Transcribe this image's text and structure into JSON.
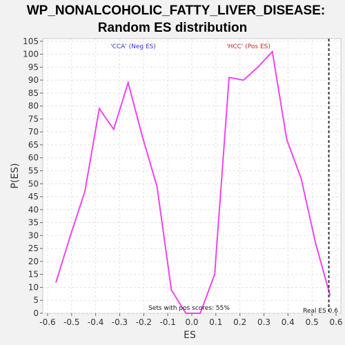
{
  "chart_data": {
    "type": "line",
    "title_line1": "WP_NONALCOHOLIC_FATTY_LIVER_DISEASE:",
    "title_line2": "Random ES distribution",
    "xlabel": "ES",
    "ylabel": "P(ES)",
    "xlim": [
      -0.62,
      0.62
    ],
    "ylim": [
      0,
      106
    ],
    "xticks": [
      -0.6,
      -0.5,
      -0.4,
      -0.3,
      -0.2,
      -0.1,
      0.0,
      0.1,
      0.2,
      0.3,
      0.4,
      0.5,
      0.6
    ],
    "xtick_labels": [
      "-0.6",
      "-0.5",
      "-0.4",
      "-0.3",
      "-0.2",
      "-0.1",
      "0.0",
      "0.1",
      "0.2",
      "0.3",
      "0.4",
      "0.5",
      "0.6"
    ],
    "yticks": [
      0,
      5,
      10,
      15,
      20,
      25,
      30,
      35,
      40,
      45,
      50,
      55,
      60,
      65,
      70,
      75,
      80,
      85,
      90,
      95,
      100,
      105
    ],
    "grid": true,
    "series": [
      {
        "color": "#ee44ee",
        "x": [
          -0.565,
          -0.505,
          -0.445,
          -0.385,
          -0.325,
          -0.265,
          -0.205,
          -0.145,
          -0.085,
          -0.025,
          0.035,
          0.095,
          0.155,
          0.215,
          0.275,
          0.335,
          0.395,
          0.455,
          0.515,
          0.575
        ],
        "y": [
          12,
          30,
          47,
          79,
          71,
          89,
          68,
          49,
          9,
          0,
          0,
          15,
          91,
          90,
          95,
          101,
          67,
          52,
          27,
          7
        ]
      }
    ],
    "neg_label": "'CCA' (Neg ES)",
    "neg_label_color": "#3333cc",
    "pos_label": "'HCC' (Pos ES)",
    "pos_label_color": "#cc2222",
    "real_es_x": 0.57,
    "real_es_label": "Real ES 0.6",
    "footnote": "Sets with pos scores: 55%"
  }
}
